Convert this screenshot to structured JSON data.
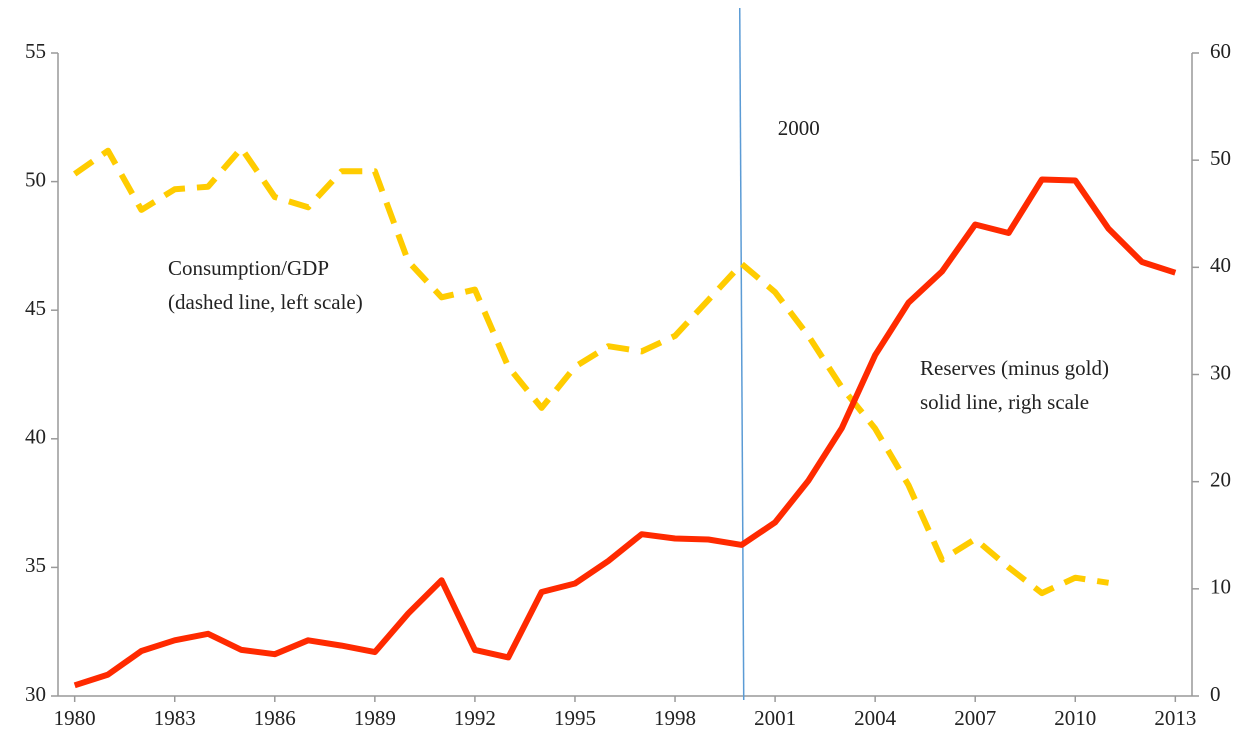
{
  "chart_data": {
    "type": "line",
    "x": [
      1980,
      1981,
      1982,
      1983,
      1984,
      1985,
      1986,
      1987,
      1988,
      1989,
      1990,
      1991,
      1992,
      1993,
      1994,
      1995,
      1996,
      1997,
      1998,
      1999,
      2000,
      2001,
      2002,
      2003,
      2004,
      2005,
      2006,
      2007,
      2008,
      2009,
      2010,
      2011,
      2012,
      2013
    ],
    "xlim": [
      1979.5,
      2013.5
    ],
    "xticks": [
      1980,
      1983,
      1986,
      1989,
      1992,
      1995,
      1998,
      2001,
      2004,
      2007,
      2010,
      2013
    ],
    "ylim": [
      30,
      55
    ],
    "yticks": [
      30,
      35,
      40,
      45,
      50,
      55
    ],
    "y2lim": [
      0,
      60
    ],
    "y2ticks": [
      0,
      10,
      20,
      30,
      40,
      50,
      60
    ],
    "series": [
      {
        "name": "Consumption/GDP",
        "color": "#FFCC00",
        "dashed": true,
        "axis": "y",
        "values": [
          50.3,
          51.2,
          48.9,
          49.7,
          49.8,
          51.3,
          49.4,
          49.0,
          50.4,
          50.4,
          46.9,
          45.5,
          45.8,
          42.8,
          41.2,
          42.8,
          43.6,
          43.4,
          44.0,
          45.4,
          46.8,
          45.7,
          44.0,
          42.0,
          40.4,
          38.2,
          35.3,
          36.1,
          35.0,
          34.0,
          34.6,
          34.4,
          null,
          null
        ]
      },
      {
        "name": "Reserves (minus gold)",
        "color": "#FF2A00",
        "dashed": false,
        "axis": "y2",
        "values": [
          1.0,
          2.0,
          4.2,
          5.2,
          5.8,
          4.3,
          3.9,
          5.2,
          4.7,
          4.1,
          7.7,
          10.8,
          4.3,
          3.6,
          9.7,
          10.5,
          12.6,
          15.1,
          14.7,
          14.6,
          14.1,
          16.2,
          20.1,
          25.0,
          31.8,
          36.7,
          39.6,
          44.0,
          43.2,
          48.2,
          48.1,
          43.6,
          40.5,
          39.5
        ]
      }
    ],
    "vline": {
      "x": 2000,
      "text": "2000",
      "color": "#5B9BD5"
    },
    "annotations": [
      {
        "lines": [
          "Consumption/GDP",
          "(dashed line, left scale)"
        ]
      },
      {
        "lines": [
          "Reserves (minus gold)",
          "solid line, righ scale"
        ]
      }
    ]
  }
}
